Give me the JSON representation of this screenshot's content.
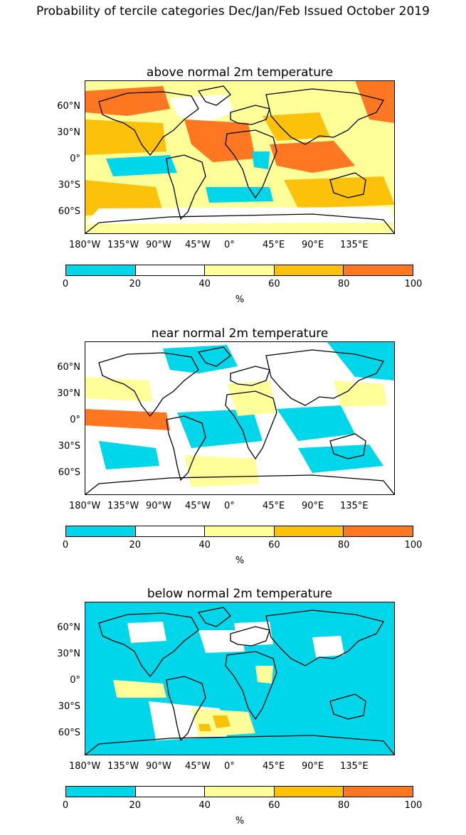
{
  "title": "Probability of tercile categories Dec/Jan/Feb Issued October 2019",
  "colors": {
    "bin_0_20": "#00d6ea",
    "bin_20_40": "#ffffff",
    "bin_40_60": "#ffff99",
    "bin_60_80": "#fcc10a",
    "bin_80_100": "#ff7720",
    "coast": "#000000"
  },
  "axes": {
    "lat_ticks": [
      "60°N",
      "30°N",
      "0°",
      "30°S",
      "60°S"
    ],
    "lon_ticks": [
      "180°W",
      "135°W",
      "90°W",
      "45°W",
      "0°",
      "45°E",
      "90°E",
      "135°E"
    ]
  },
  "colorbar": {
    "ticks": [
      "0",
      "20",
      "40",
      "60",
      "80",
      "100"
    ],
    "unit": "%"
  },
  "panels": [
    {
      "title": "above normal 2m temperature",
      "background_category": "bin_40_60"
    },
    {
      "title": "near normal 2m temperature",
      "background_category": "bin_20_40"
    },
    {
      "title": "below normal 2m temperature",
      "background_category": "bin_0_20"
    }
  ]
}
